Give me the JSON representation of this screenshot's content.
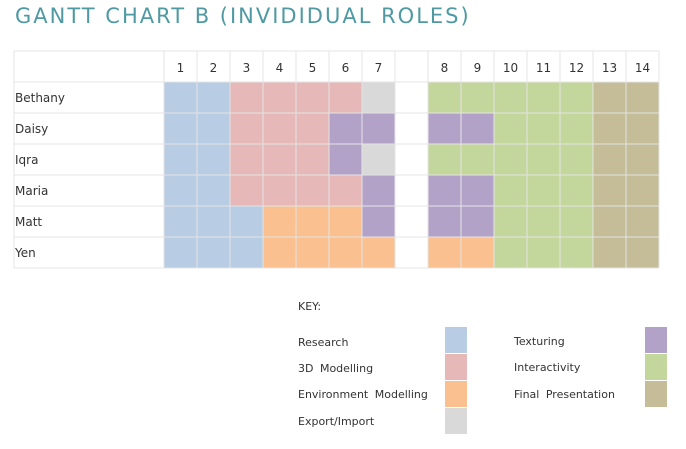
{
  "title": "GANTT CHART B (INVIDIDUAL ROLES)",
  "chart_data": {
    "type": "gantt",
    "title": "GANTT CHART B (INVIDIDUAL ROLES)",
    "columns": [
      "1",
      "2",
      "3",
      "4",
      "5",
      "6",
      "7",
      "",
      "8",
      "9",
      "10",
      "11",
      "12",
      "13",
      "14"
    ],
    "people": [
      "Bethany",
      "Daisy",
      "Iqra",
      "Maria",
      "Matt",
      "Yen"
    ],
    "assignments": {
      "Bethany": [
        "Research",
        "Research",
        "3D Modelling",
        "3D Modelling",
        "3D Modelling",
        "3D Modelling",
        "Export/Import",
        "",
        "Interactivity",
        "Interactivity",
        "Interactivity",
        "Interactivity",
        "Interactivity",
        "Final Presentation",
        "Final Presentation"
      ],
      "Daisy": [
        "Research",
        "Research",
        "3D Modelling",
        "3D Modelling",
        "3D Modelling",
        "Texturing",
        "Texturing",
        "",
        "Texturing",
        "Texturing",
        "Interactivity",
        "Interactivity",
        "Interactivity",
        "Final Presentation",
        "Final Presentation"
      ],
      "Iqra": [
        "Research",
        "Research",
        "3D Modelling",
        "3D Modelling",
        "3D Modelling",
        "Texturing",
        "Export/Import",
        "",
        "Interactivity",
        "Interactivity",
        "Interactivity",
        "Interactivity",
        "Interactivity",
        "Final Presentation",
        "Final Presentation"
      ],
      "Maria": [
        "Research",
        "Research",
        "3D Modelling",
        "3D Modelling",
        "3D Modelling",
        "3D Modelling",
        "Texturing",
        "",
        "Texturing",
        "Texturing",
        "Interactivity",
        "Interactivity",
        "Interactivity",
        "Final Presentation",
        "Final Presentation"
      ],
      "Matt": [
        "Research",
        "Research",
        "Research",
        "Environment Modelling",
        "Environment Modelling",
        "Environment Modelling",
        "Texturing",
        "",
        "Texturing",
        "Texturing",
        "Interactivity",
        "Interactivity",
        "Interactivity",
        "Final Presentation",
        "Final Presentation"
      ],
      "Yen": [
        "Research",
        "Research",
        "Research",
        "Environment Modelling",
        "Environment Modelling",
        "Environment Modelling",
        "Environment Modelling",
        "",
        "Environment Modelling",
        "Environment Modelling",
        "Interactivity",
        "Interactivity",
        "Interactivity",
        "Final Presentation",
        "Final Presentation"
      ]
    },
    "key_title": "KEY:",
    "legend": [
      {
        "name": "Research",
        "color": "#b8cce4"
      },
      {
        "name": "3D  Modelling",
        "color": "#e6b9b8"
      },
      {
        "name": "Environment  Modelling",
        "color": "#fac090"
      },
      {
        "name": "Export/Import",
        "color": "#d9d9d9"
      },
      {
        "name": "Texturing",
        "color": "#b3a2c7"
      },
      {
        "name": "Interactivity",
        "color": "#c3d69b"
      },
      {
        "name": "Final  Presentation",
        "color": "#c4bd97"
      }
    ],
    "colors": {
      "Research": "#b8cce4",
      "3D Modelling": "#e6b9b8",
      "Environment Modelling": "#fac090",
      "Export/Import": "#d9d9d9",
      "Texturing": "#b3a2c7",
      "Interactivity": "#c3d69b",
      "Final Presentation": "#c4bd97"
    },
    "grid": true
  }
}
